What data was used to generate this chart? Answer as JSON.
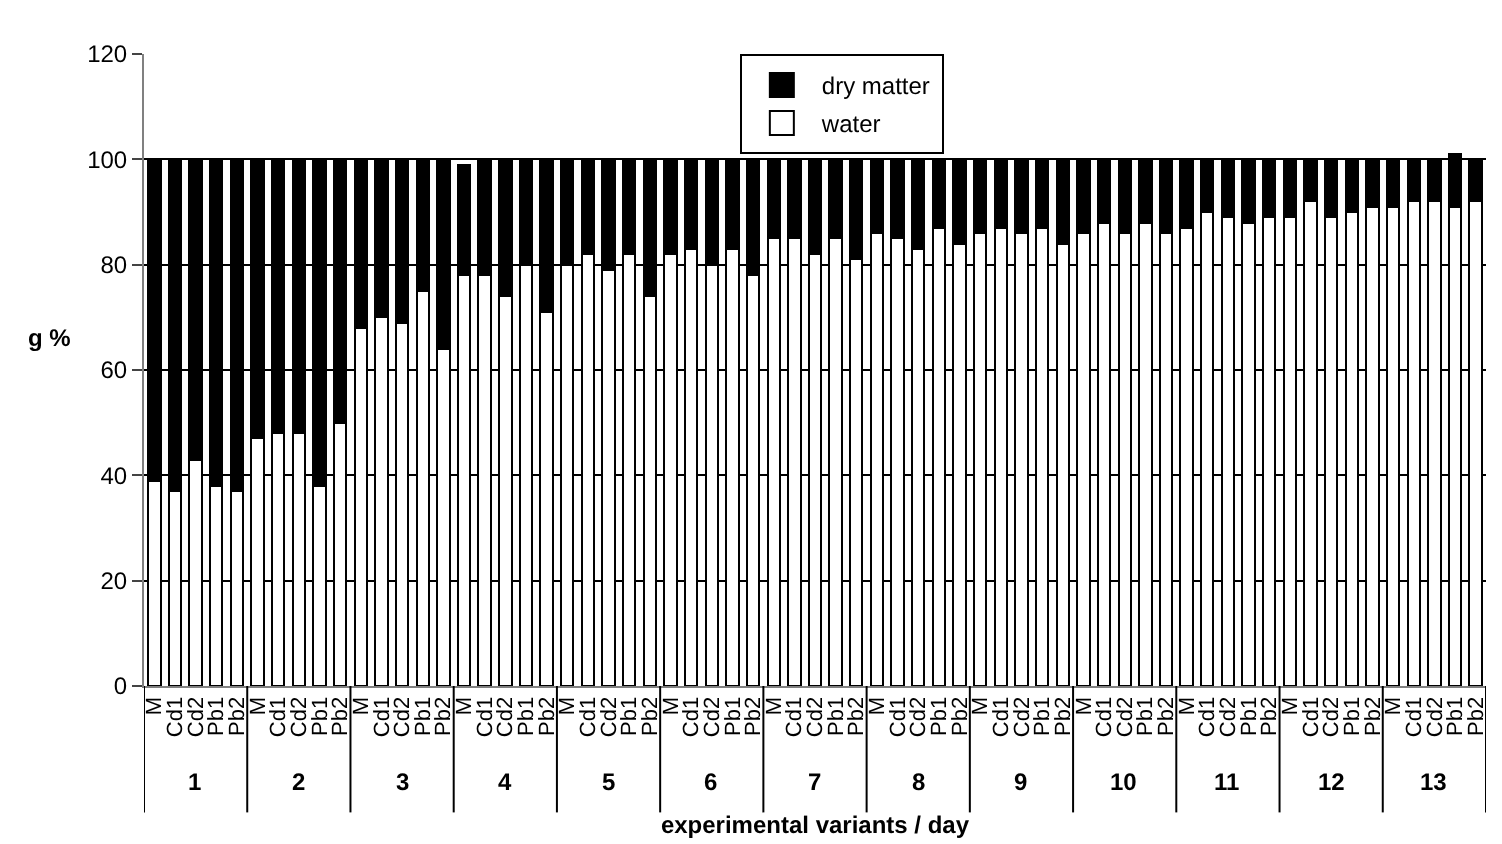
{
  "chart_data": {
    "type": "bar",
    "stacked": true,
    "xlabel": "experimental variants / day",
    "ylabel": "g %",
    "categories": [
      "M",
      "Cd1",
      "Cd2",
      "Pb1",
      "Pb2",
      "M",
      "Cd1",
      "Cd2",
      "Pb1",
      "Pb2",
      "M",
      "Cd1",
      "Cd2",
      "Pb1",
      "Pb2",
      "M",
      "Cd1",
      "Cd2",
      "Pb1",
      "Pb2",
      "M",
      "Cd1",
      "Cd2",
      "Pb1",
      "Pb2",
      "M",
      "Cd1",
      "Cd2",
      "Pb1",
      "Pb2",
      "M",
      "Cd1",
      "Cd2",
      "Pb1",
      "Pb2",
      "M",
      "Cd1",
      "Cd2",
      "Pb1",
      "Pb2",
      "M",
      "Cd1",
      "Cd2",
      "Pb1",
      "Pb2",
      "M",
      "Cd1",
      "Cd2",
      "Pb1",
      "Pb2",
      "M",
      "Cd1",
      "Cd2",
      "Pb1",
      "Pb2",
      "M",
      "Cd1",
      "Cd2",
      "Pb1",
      "Pb2",
      "M",
      "Cd1",
      "Cd2",
      "Pb1",
      "Pb2"
    ],
    "annotations": [
      "1",
      "2",
      "3",
      "4",
      "5",
      "6",
      "7",
      "8",
      "9",
      "10",
      "11",
      "12",
      "13"
    ],
    "series": [
      {
        "name": "water",
        "color": "#ffffff",
        "values": [
          39,
          37,
          43,
          38,
          37,
          47,
          48,
          48,
          38,
          50,
          68,
          70,
          69,
          75,
          64,
          78,
          78,
          74,
          80,
          71,
          80,
          82,
          79,
          82,
          74,
          82,
          83,
          80,
          83,
          78,
          85,
          85,
          82,
          85,
          81,
          86,
          85,
          83,
          87,
          84,
          86,
          87,
          86,
          87,
          84,
          86,
          88,
          86,
          88,
          86,
          87,
          90,
          89,
          88,
          89,
          89,
          92,
          89,
          90,
          91,
          91,
          92,
          92,
          91,
          92
        ]
      },
      {
        "name": "dry matter",
        "color": "#000000",
        "values": [
          61,
          63,
          57,
          62,
          63,
          53,
          52,
          52,
          62,
          50,
          32,
          30,
          31,
          25,
          36,
          21,
          22,
          26,
          20,
          29,
          20,
          18,
          21,
          18,
          26,
          18,
          17,
          20,
          17,
          22,
          15,
          15,
          18,
          15,
          19,
          14,
          15,
          17,
          13,
          16,
          14,
          13,
          14,
          13,
          16,
          14,
          12,
          14,
          12,
          14,
          13,
          10,
          11,
          12,
          11,
          11,
          8,
          11,
          10,
          9,
          9,
          8,
          8,
          10,
          8
        ]
      }
    ],
    "ylim": [
      0,
      120
    ],
    "yticks": [
      0,
      20,
      40,
      60,
      80,
      100,
      120
    ],
    "grid": "y",
    "legend": "top"
  }
}
